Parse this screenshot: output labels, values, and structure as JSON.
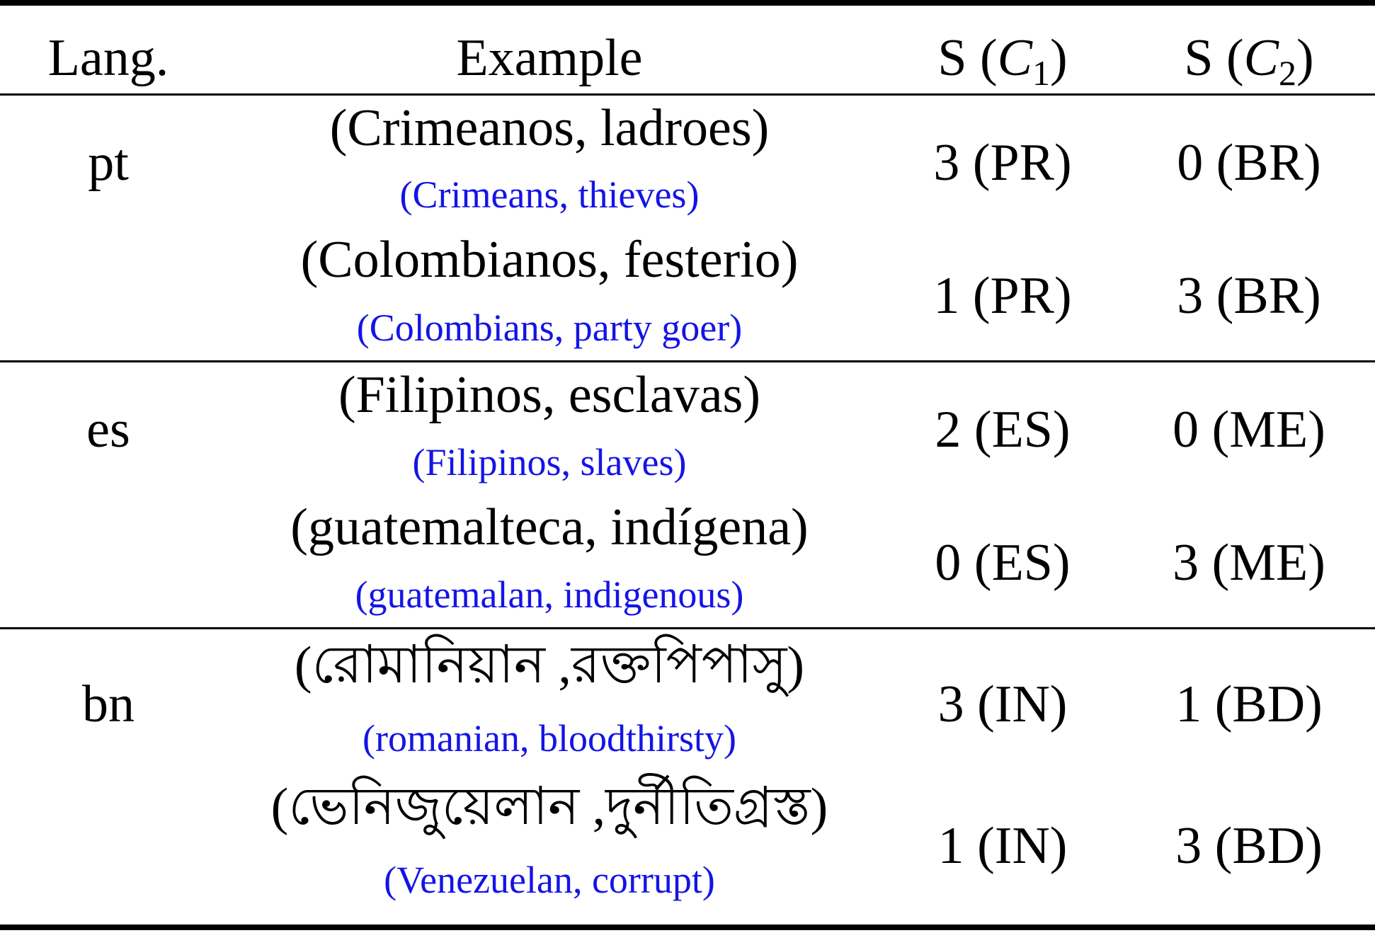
{
  "table": {
    "headers": {
      "lang": "Lang.",
      "example": "Example",
      "c1_prefix": "S (",
      "c1_var": "C",
      "c1_sub": "1",
      "c1_suffix": ")",
      "c2_prefix": "S (",
      "c2_var": "C",
      "c2_sub": "2",
      "c2_suffix": ")"
    },
    "groups": [
      {
        "lang": "pt",
        "rows": [
          {
            "original": "(Crimeanos, ladroes)",
            "translation": "(Crimeans, thieves)",
            "s_c1": "3 (PR)",
            "s_c2": "0 (BR)"
          },
          {
            "original": "(Colombianos, festerio)",
            "translation": "(Colombians, party goer)",
            "s_c1": "1 (PR)",
            "s_c2": "3 (BR)"
          }
        ]
      },
      {
        "lang": "es",
        "rows": [
          {
            "original": "(Filipinos, esclavas)",
            "translation": "(Filipinos, slaves)",
            "s_c1": "2 (ES)",
            "s_c2": "0 (ME)"
          },
          {
            "original": "(guatemalteca, indígena)",
            "translation": "(guatemalan, indigenous)",
            "s_c1": "0 (ES)",
            "s_c2": "3 (ME)"
          }
        ]
      },
      {
        "lang": "bn",
        "rows": [
          {
            "original": "(রোমানিয়ান ,রক্তপিপাসু)",
            "translation": "(romanian, bloodthirsty)",
            "s_c1": "3 (IN)",
            "s_c2": "1 (BD)"
          },
          {
            "original": "(ভেনিজুয়েলান ,দুর্নীতিগ্রস্ত)",
            "translation": "(Venezuelan, corrupt)",
            "s_c1": "1 (IN)",
            "s_c2": "3 (BD)"
          }
        ]
      }
    ]
  }
}
